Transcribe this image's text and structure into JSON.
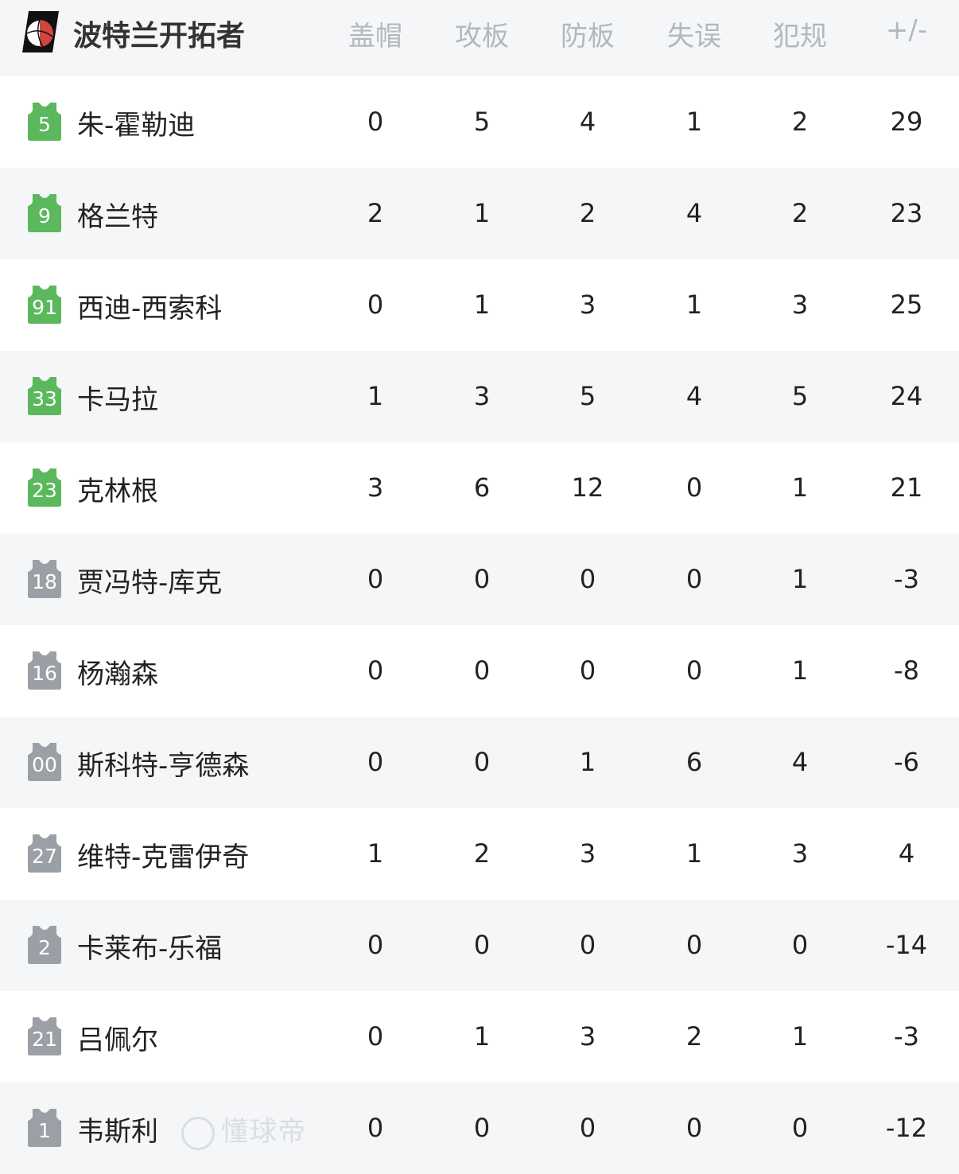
{
  "header": {
    "team": "波特兰开拓者",
    "columns": [
      "盖帽",
      "攻板",
      "防板",
      "失误",
      "犯规",
      "+/-"
    ]
  },
  "colors": {
    "starter": "#5cb85c",
    "bench": "#9aa0a6",
    "logo_red": "#d0463f"
  },
  "players": [
    {
      "number": "5",
      "name": "朱-霍勒迪",
      "starter": true,
      "stats": [
        "0",
        "5",
        "4",
        "1",
        "2",
        "29"
      ]
    },
    {
      "number": "9",
      "name": "格兰特",
      "starter": true,
      "stats": [
        "2",
        "1",
        "2",
        "4",
        "2",
        "23"
      ]
    },
    {
      "number": "91",
      "name": "西迪-西索科",
      "starter": true,
      "stats": [
        "0",
        "1",
        "3",
        "1",
        "3",
        "25"
      ]
    },
    {
      "number": "33",
      "name": "卡马拉",
      "starter": true,
      "stats": [
        "1",
        "3",
        "5",
        "4",
        "5",
        "24"
      ]
    },
    {
      "number": "23",
      "name": "克林根",
      "starter": true,
      "stats": [
        "3",
        "6",
        "12",
        "0",
        "1",
        "21"
      ]
    },
    {
      "number": "18",
      "name": "贾冯特-库克",
      "starter": false,
      "stats": [
        "0",
        "0",
        "0",
        "0",
        "1",
        "-3"
      ]
    },
    {
      "number": "16",
      "name": "杨瀚森",
      "starter": false,
      "stats": [
        "0",
        "0",
        "0",
        "0",
        "1",
        "-8"
      ]
    },
    {
      "number": "00",
      "name": "斯科特-亨德森",
      "starter": false,
      "stats": [
        "0",
        "0",
        "1",
        "6",
        "4",
        "-6"
      ]
    },
    {
      "number": "27",
      "name": "维特-克雷伊奇",
      "starter": false,
      "stats": [
        "1",
        "2",
        "3",
        "1",
        "3",
        "4"
      ]
    },
    {
      "number": "2",
      "name": "卡莱布-乐福",
      "starter": false,
      "stats": [
        "0",
        "0",
        "0",
        "0",
        "0",
        "-14"
      ]
    },
    {
      "number": "21",
      "name": "吕佩尔",
      "starter": false,
      "stats": [
        "0",
        "1",
        "3",
        "2",
        "1",
        "-3"
      ]
    },
    {
      "number": "1",
      "name": "韦斯利",
      "starter": false,
      "stats": [
        "0",
        "0",
        "0",
        "0",
        "0",
        "-12"
      ]
    }
  ],
  "watermark": "懂球帝"
}
